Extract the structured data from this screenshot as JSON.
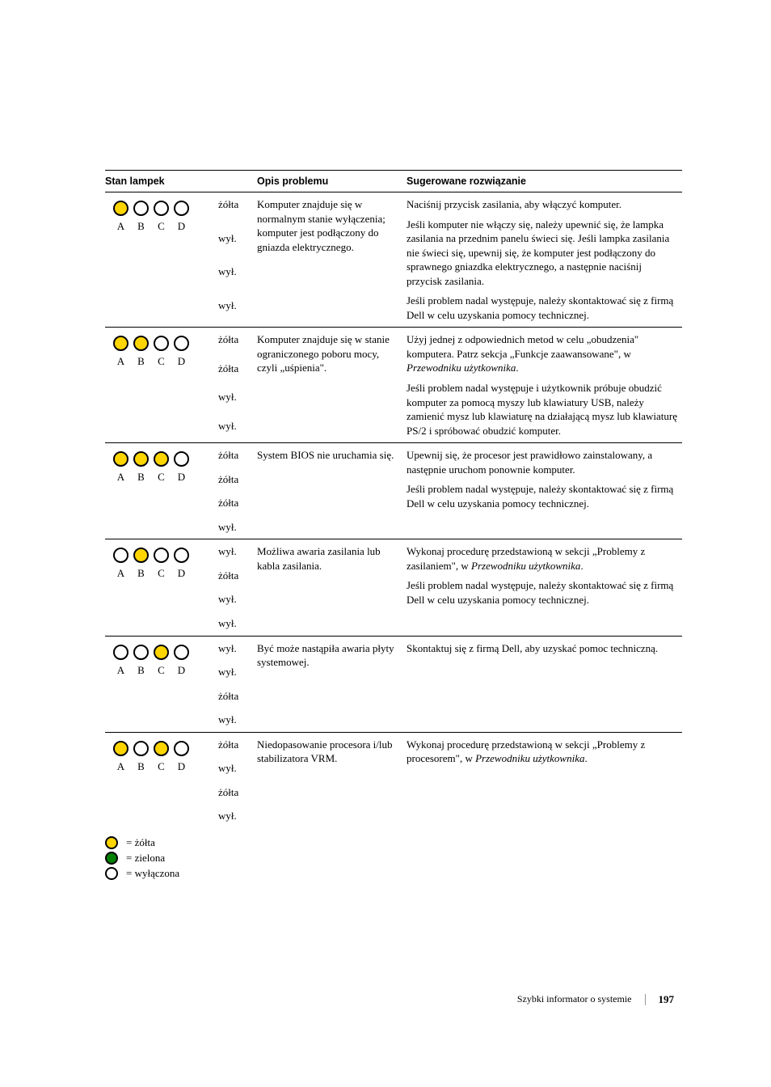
{
  "headers": {
    "col1": "Stan lampek",
    "col2": "Opis problemu",
    "col3": "Sugerowane rozwiązanie"
  },
  "labels": {
    "A": "A",
    "B": "B",
    "C": "C",
    "D": "D"
  },
  "states": {
    "yellow": "żółta",
    "off": "wył.",
    "green": "zielona"
  },
  "legend": {
    "yellow": "= żółta",
    "green": "= zielona",
    "off": "= wyłączona"
  },
  "rows": [
    {
      "lamps": [
        "on-yellow",
        "off",
        "off",
        "off"
      ],
      "stateKeys": [
        "yellow",
        "off",
        "off",
        "off"
      ],
      "desc": "Komputer znajduje się w normalnym stanie wyłączenia; komputer jest podłączony do gniazda elektrycznego.",
      "sols": [
        "Naciśnij przycisk zasilania, aby włączyć komputer.",
        "Jeśli komputer nie włączy się, należy upewnić się, że lampka zasilania na przednim panelu świeci się. Jeśli lampka zasilania nie świeci się, upewnij się, że komputer jest podłączony do sprawnego gniazdka elektrycznego, a następnie naciśnij przycisk zasilania.",
        "Jeśli problem nadal występuje, należy skontaktować się z firmą Dell w celu uzyskania pomocy technicznej."
      ]
    },
    {
      "lamps": [
        "on-yellow",
        "on-yellow",
        "off",
        "off"
      ],
      "stateKeys": [
        "yellow",
        "yellow",
        "off",
        "off"
      ],
      "desc": "Komputer znajduje się w stanie ograniczonego poboru mocy, czyli „uśpienia\".",
      "sols": [
        "Użyj jednej z odpowiednich metod w celu „obudzenia\" komputera. Patrz sekcja „Funkcje zaawansowane\", w Przewodniku użytkownika.",
        "Jeśli problem nadal występuje i użytkownik próbuje obudzić komputer za pomocą myszy lub klawiatury USB, należy zamienić mysz lub klawiaturę na działającą mysz lub klawiaturę PS/2 i spróbować obudzić komputer."
      ]
    },
    {
      "lamps": [
        "on-yellow",
        "on-yellow",
        "on-yellow",
        "off"
      ],
      "stateKeys": [
        "yellow",
        "yellow",
        "yellow",
        "off"
      ],
      "desc": "System BIOS nie uruchamia się.",
      "sols": [
        "Upewnij się, że procesor jest prawidłowo zainstalowany, a następnie uruchom ponownie komputer.",
        "Jeśli problem nadal występuje, należy skontaktować się z firmą Dell w celu uzyskania pomocy technicznej."
      ]
    },
    {
      "lamps": [
        "off",
        "on-yellow",
        "off",
        "off"
      ],
      "stateKeys": [
        "off",
        "yellow",
        "off",
        "off"
      ],
      "desc": "Możliwa awaria zasilania lub kabla zasilania.",
      "sols": [
        "Wykonaj procedurę przedstawioną w sekcji „Problemy z zasilaniem\", w Przewodniku użytkownika.",
        "Jeśli problem nadal występuje, należy skontaktować się z firmą Dell w celu uzyskania pomocy technicznej."
      ]
    },
    {
      "lamps": [
        "off",
        "off",
        "on-yellow",
        "off"
      ],
      "stateKeys": [
        "off",
        "off",
        "yellow",
        "off"
      ],
      "desc": "Być może nastąpiła awaria płyty systemowej.",
      "sols": [
        "Skontaktuj się z firmą Dell, aby uzyskać pomoc techniczną."
      ]
    },
    {
      "lamps": [
        "on-yellow",
        "off",
        "on-yellow",
        "off"
      ],
      "stateKeys": [
        "yellow",
        "off",
        "yellow",
        "off"
      ],
      "desc": "Niedopasowanie procesora i/lub stabilizatora VRM.",
      "sols": [
        "Wykonaj procedurę przedstawioną w sekcji „Problemy z procesorem\", w Przewodniku użytkownika."
      ]
    }
  ],
  "footer": {
    "title": "Szybki informator o systemie",
    "page": "197"
  },
  "colors": {
    "yellow": "#ffd500",
    "green": "#008000",
    "off": "#ffffff",
    "border": "#000000"
  }
}
